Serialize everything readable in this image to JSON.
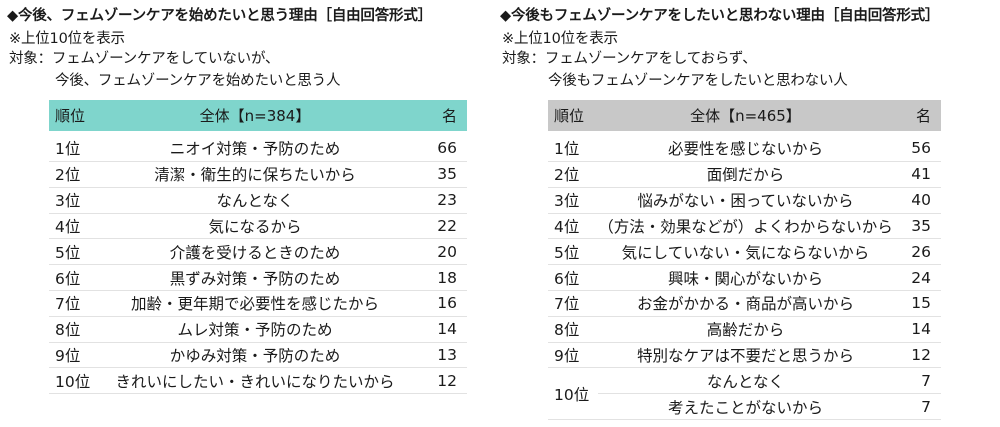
{
  "left": {
    "title": "◆今後、フェムゾーンケアを始めたいと思う理由［自由回答形式］",
    "note": "※上位10位を表示",
    "target_line1": "対象：フェムゾーンケアをしていないが、",
    "target_line2": "今後、フェムゾーンケアを始めたいと思う人",
    "header": {
      "rank": "順位",
      "group": "全体【n=384】",
      "count": "名"
    },
    "rows": [
      {
        "rank": "1位",
        "reason": "ニオイ対策・予防のため",
        "count": "66"
      },
      {
        "rank": "2位",
        "reason": "清潔・衛生的に保ちたいから",
        "count": "35"
      },
      {
        "rank": "3位",
        "reason": "なんとなく",
        "count": "23"
      },
      {
        "rank": "4位",
        "reason": "気になるから",
        "count": "22"
      },
      {
        "rank": "5位",
        "reason": "介護を受けるときのため",
        "count": "20"
      },
      {
        "rank": "6位",
        "reason": "黒ずみ対策・予防のため",
        "count": "18"
      },
      {
        "rank": "7位",
        "reason": "加齢・更年期で必要性を感じたから",
        "count": "16"
      },
      {
        "rank": "8位",
        "reason": "ムレ対策・予防のため",
        "count": "14"
      },
      {
        "rank": "9位",
        "reason": "かゆみ対策・予防のため",
        "count": "13"
      },
      {
        "rank": "10位",
        "reason": "きれいにしたい・きれいになりたいから",
        "count": "12"
      }
    ]
  },
  "right": {
    "title": "◆今後もフェムゾーンケアをしたいと思わない理由［自由回答形式］",
    "note": "※上位10位を表示",
    "target_line1": "対象：フェムゾーンケアをしておらず、",
    "target_line2": "今後もフェムゾーンケアをしたいと思わない人",
    "header": {
      "rank": "順位",
      "group": "全体【n=465】",
      "count": "名"
    },
    "rows": [
      {
        "rank": "1位",
        "reason": "必要性を感じないから",
        "count": "56"
      },
      {
        "rank": "2位",
        "reason": "面倒だから",
        "count": "41"
      },
      {
        "rank": "3位",
        "reason": "悩みがない・困っていないから",
        "count": "40"
      },
      {
        "rank": "4位",
        "reason": "（方法・効果などが）よくわからないから",
        "count": "35"
      },
      {
        "rank": "5位",
        "reason": "気にしていない・気にならないから",
        "count": "26"
      },
      {
        "rank": "6位",
        "reason": "興味・関心がないから",
        "count": "24"
      },
      {
        "rank": "7位",
        "reason": "お金がかかる・商品が高いから",
        "count": "15"
      },
      {
        "rank": "8位",
        "reason": "高齢だから",
        "count": "14"
      },
      {
        "rank": "9位",
        "reason": "特別なケアは不要だと思うから",
        "count": "12"
      }
    ],
    "tie_rank": "10位",
    "tie_rows": [
      {
        "reason": "なんとなく",
        "count": "7"
      },
      {
        "reason": "考えたことがないから",
        "count": "7"
      }
    ]
  },
  "colors": {
    "left_header": "#7fd5cc",
    "right_header": "#c8c8c8"
  }
}
